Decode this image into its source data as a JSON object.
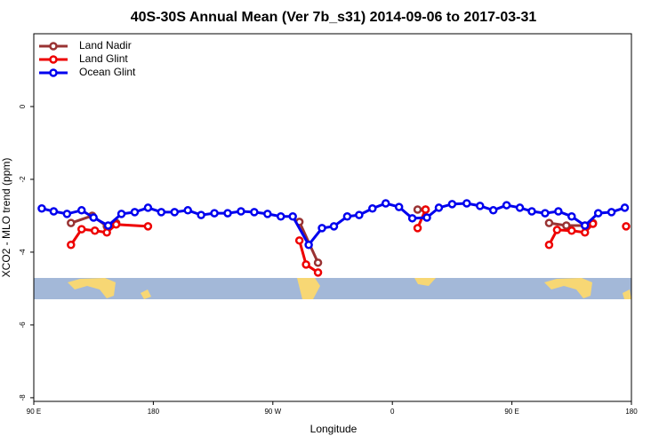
{
  "chart_data": {
    "type": "line",
    "title": "40S-30S Annual Mean (Ver 7b_s31)   2014-09-06 to 2017-03-31",
    "x_label": "Longitude",
    "y_label": "XCO2 - MLO trend (ppm)",
    "xlim": [
      90,
      540
    ],
    "ylim": [
      -8.1,
      2
    ],
    "xticks": [
      {
        "value": 90,
        "label": "90 E"
      },
      {
        "value": 180,
        "label": "180"
      },
      {
        "value": 270,
        "label": "90 W"
      },
      {
        "value": 360,
        "label": "0"
      },
      {
        "value": 450,
        "label": "90 E"
      },
      {
        "value": 540,
        "label": "180"
      }
    ],
    "yticks": [
      0,
      -2,
      -4,
      -6,
      -8
    ],
    "legend": "top-left",
    "series": [
      {
        "name": "Land Nadir",
        "color": "#993333",
        "x": [
          118,
          134,
          145,
          152,
          null,
          290,
          304,
          null,
          379,
          385,
          null,
          478,
          491,
          505,
          511
        ],
        "values": [
          -3.2,
          -3.0,
          -3.29,
          -3.2,
          null,
          -3.17,
          -4.29,
          null,
          -2.83,
          -2.83,
          null,
          -3.2,
          -3.27,
          -3.27,
          -3.2
        ]
      },
      {
        "name": "Land Glint",
        "color": "#ee0000",
        "x": [
          118,
          126,
          136,
          145,
          152,
          176,
          null,
          290,
          295,
          304,
          null,
          379,
          385,
          null,
          478,
          484,
          495,
          505,
          511,
          null,
          536
        ],
        "values": [
          -3.8,
          -3.37,
          -3.41,
          -3.46,
          -3.24,
          -3.29,
          null,
          -3.68,
          -4.34,
          -4.56,
          null,
          -3.34,
          -2.83,
          null,
          -3.8,
          -3.39,
          -3.41,
          -3.46,
          -3.22,
          null,
          -3.29
        ]
      },
      {
        "name": "Ocean Glint",
        "color": "#0000ee",
        "x": [
          96,
          105,
          115,
          126,
          135,
          146,
          156,
          166,
          176,
          186,
          196,
          206,
          216,
          226,
          236,
          246,
          256,
          266,
          276,
          285,
          297,
          307,
          316,
          326,
          335,
          345,
          355,
          365,
          375,
          386,
          395,
          405,
          416,
          426,
          436,
          446,
          456,
          465,
          475,
          485,
          495,
          505,
          515,
          525,
          535
        ],
        "values": [
          -2.8,
          -2.88,
          -2.95,
          -2.85,
          -3.05,
          -3.27,
          -2.95,
          -2.9,
          -2.78,
          -2.9,
          -2.9,
          -2.85,
          -2.98,
          -2.93,
          -2.93,
          -2.88,
          -2.9,
          -2.95,
          -3.02,
          -3.02,
          -3.8,
          -3.34,
          -3.29,
          -3.02,
          -2.98,
          -2.8,
          -2.66,
          -2.76,
          -3.07,
          -3.05,
          -2.78,
          -2.68,
          -2.66,
          -2.73,
          -2.85,
          -2.71,
          -2.78,
          -2.88,
          -2.93,
          -2.88,
          -3.02,
          -3.27,
          -2.93,
          -2.9,
          -2.78
        ]
      }
    ]
  }
}
